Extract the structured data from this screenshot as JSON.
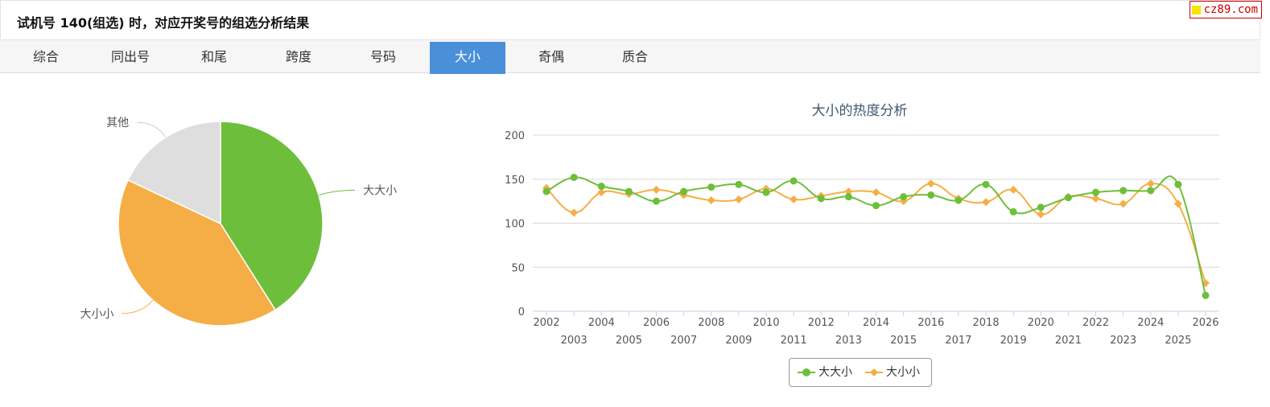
{
  "header": {
    "title": "试机号 140(组选) 时，对应开奖号的组选分析结果",
    "badge": "cz89.com"
  },
  "tabs": [
    {
      "label": "综合",
      "active": false
    },
    {
      "label": "同出号",
      "active": false
    },
    {
      "label": "和尾",
      "active": false
    },
    {
      "label": "跨度",
      "active": false
    },
    {
      "label": "号码",
      "active": false
    },
    {
      "label": "大小",
      "active": true
    },
    {
      "label": "奇偶",
      "active": false
    },
    {
      "label": "质合",
      "active": false
    }
  ],
  "colors": {
    "green": "#6dbf3b",
    "orange": "#f5ae45",
    "gray": "#dedede",
    "tab_active": "#4a90d9"
  },
  "chart_data": [
    {
      "type": "pie",
      "labels": [
        "大大小",
        "大小小",
        "其他"
      ],
      "values": [
        41,
        41,
        18
      ],
      "colors": [
        "#6dbf3b",
        "#f5ae45",
        "#dedede"
      ]
    },
    {
      "type": "line",
      "title": "大小的热度分析",
      "x": [
        "2002",
        "2003",
        "2004",
        "2005",
        "2006",
        "2007",
        "2008",
        "2009",
        "2010",
        "2011",
        "2012",
        "2013",
        "2014",
        "2015",
        "2016",
        "2017",
        "2018",
        "2019",
        "2020",
        "2021",
        "2022",
        "2023",
        "2024",
        "2025",
        "2026"
      ],
      "series": [
        {
          "name": "大大小",
          "color": "#6dbf3b",
          "marker": "circle",
          "values": [
            136,
            152,
            142,
            136,
            125,
            136,
            141,
            144,
            135,
            148,
            128,
            130,
            120,
            130,
            132,
            126,
            144,
            113,
            118,
            129,
            135,
            137,
            137,
            144,
            18
          ]
        },
        {
          "name": "大小小",
          "color": "#f5ae45",
          "marker": "diamond",
          "values": [
            140,
            112,
            135,
            133,
            138,
            132,
            126,
            127,
            139,
            127,
            131,
            136,
            135,
            125,
            145,
            128,
            124,
            138,
            110,
            130,
            128,
            122,
            145,
            122,
            32
          ]
        }
      ],
      "ylim": [
        0,
        200
      ],
      "yticks": [
        0,
        50,
        100,
        150,
        200
      ],
      "legend": "bottom-center",
      "grid": true
    }
  ]
}
